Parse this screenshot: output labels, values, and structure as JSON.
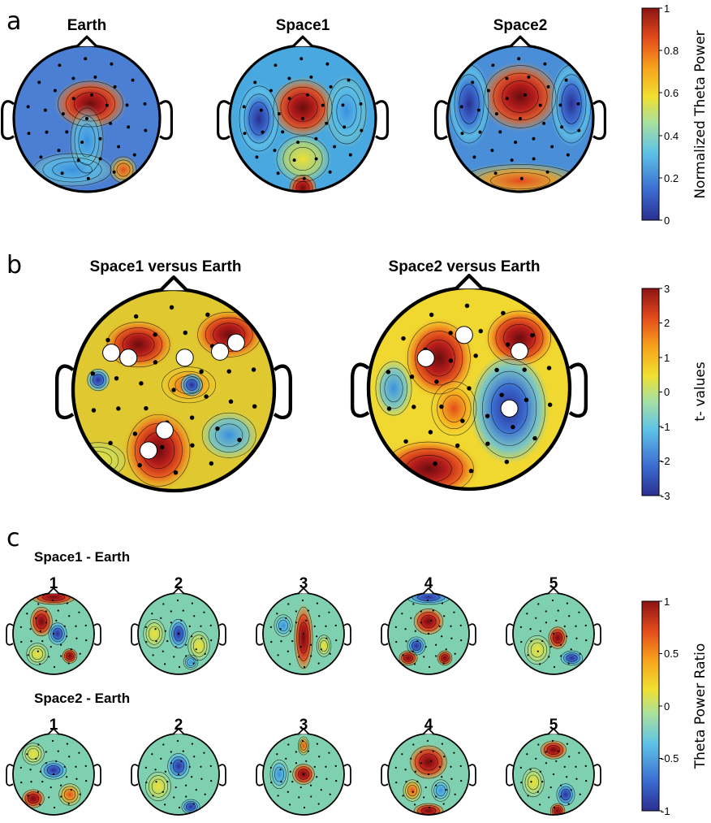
{
  "panels": {
    "a": {
      "letter": "a",
      "titles": [
        "Earth",
        "Space1",
        "Space2"
      ],
      "colorbar": {
        "label": "Normalized Theta Power",
        "ticks": [
          "1",
          "0.8",
          "0.6",
          "0.4",
          "0.2",
          "0"
        ]
      }
    },
    "b": {
      "letter": "b",
      "titles": [
        "Space1 versus Earth",
        "Space2 versus Earth"
      ],
      "colorbar": {
        "label": "t- values",
        "ticks": [
          "3",
          "2",
          "1",
          "0",
          "-1",
          "-2",
          "-3"
        ]
      }
    },
    "c": {
      "letter": "c",
      "row1_label": "Space1 - Earth",
      "row2_label": "Space2 - Earth",
      "numbers": [
        "1",
        "2",
        "3",
        "4",
        "5"
      ],
      "colorbar": {
        "label": "Theta Power  Ratio",
        "ticks": [
          "1",
          "0.5",
          "0",
          "-0.5",
          "-1"
        ]
      }
    }
  },
  "colors": {
    "colormap": [
      "#2b2f8f",
      "#3b6bd0",
      "#5fc3e6",
      "#a8e0a0",
      "#f0e030",
      "#f7a21c",
      "#e34a1c",
      "#9b1a1a",
      "#6a0d0d"
    ],
    "marker": "#ffffff"
  }
}
